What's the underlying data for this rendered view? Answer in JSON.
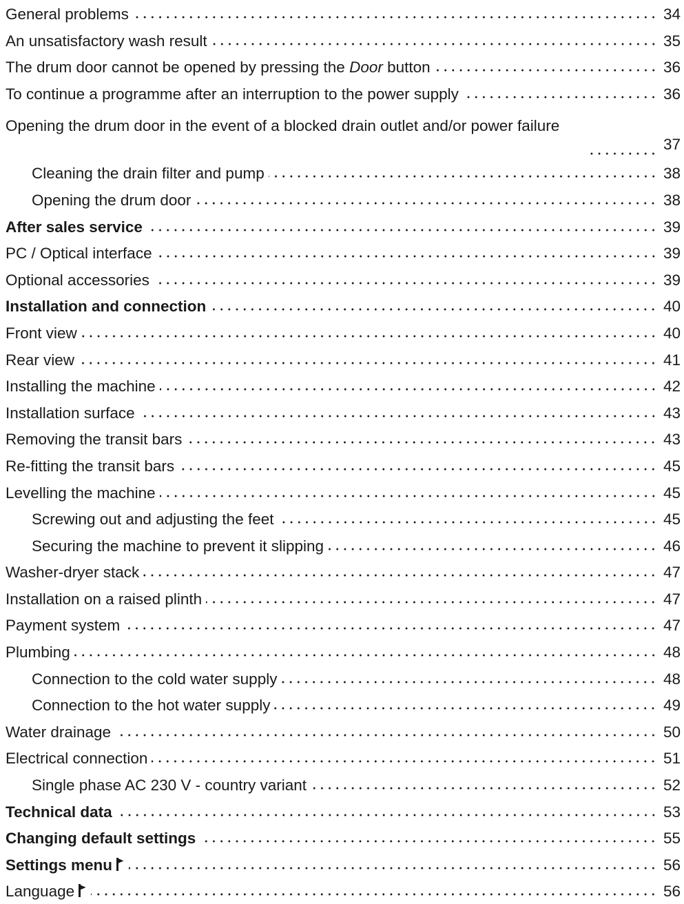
{
  "toc": {
    "entries": [
      {
        "title": "General problems",
        "page": "34",
        "level": 1,
        "bold": false
      },
      {
        "title": "An unsatisfactory wash result",
        "page": "35",
        "level": 1,
        "bold": false
      },
      {
        "title_pre": "The drum door cannot be opened by pressing the ",
        "title_em": "Door",
        "title_post": " button",
        "page": "36",
        "level": 1,
        "bold": false
      },
      {
        "title": "To continue a programme after an interruption to the power supply",
        "page": "36",
        "level": 1,
        "bold": false
      },
      {
        "title": "Opening the drum door in the event of a blocked drain outlet and/or power failure",
        "page": "37",
        "level": 1,
        "bold": false
      },
      {
        "title": "Cleaning the drain filter and pump",
        "page": "38",
        "level": 2,
        "bold": false
      },
      {
        "title": "Opening the drum door",
        "page": "38",
        "level": 2,
        "bold": false
      },
      {
        "title": "After sales service",
        "page": "39",
        "level": 1,
        "bold": true
      },
      {
        "title": "PC / Optical interface",
        "page": "39",
        "level": 1,
        "bold": false
      },
      {
        "title": "Optional accessories",
        "page": "39",
        "level": 1,
        "bold": false
      },
      {
        "title": "Installation and connection",
        "page": "40",
        "level": 1,
        "bold": true
      },
      {
        "title": "Front view",
        "page": "40",
        "level": 1,
        "bold": false
      },
      {
        "title": "Rear view",
        "page": "41",
        "level": 1,
        "bold": false
      },
      {
        "title": "Installing the machine",
        "page": "42",
        "level": 1,
        "bold": false
      },
      {
        "title": "Installation surface",
        "page": "43",
        "level": 1,
        "bold": false
      },
      {
        "title": "Removing the transit bars",
        "page": "43",
        "level": 1,
        "bold": false
      },
      {
        "title": "Re-fitting the transit bars",
        "page": "45",
        "level": 1,
        "bold": false
      },
      {
        "title": "Levelling the machine",
        "page": "45",
        "level": 1,
        "bold": false
      },
      {
        "title": "Screwing out and adjusting the feet",
        "page": "45",
        "level": 2,
        "bold": false
      },
      {
        "title": "Securing the machine to prevent it slipping",
        "page": "46",
        "level": 2,
        "bold": false
      },
      {
        "title": "Washer-dryer stack",
        "page": "47",
        "level": 1,
        "bold": false
      },
      {
        "title": "Installation on a raised plinth",
        "page": "47",
        "level": 1,
        "bold": false
      },
      {
        "title": "Payment system",
        "page": "47",
        "level": 1,
        "bold": false
      },
      {
        "title": "Plumbing",
        "page": "48",
        "level": 1,
        "bold": false
      },
      {
        "title": "Connection to the cold water supply",
        "page": "48",
        "level": 2,
        "bold": false
      },
      {
        "title": "Connection to the hot water supply",
        "page": "49",
        "level": 2,
        "bold": false
      },
      {
        "title": "Water drainage",
        "page": "50",
        "level": 1,
        "bold": false
      },
      {
        "title": "Electrical connection",
        "page": "51",
        "level": 1,
        "bold": false
      },
      {
        "title": "Single phase AC 230 V - country variant",
        "page": "52",
        "level": 2,
        "bold": false
      },
      {
        "title": "Technical data",
        "page": "53",
        "level": 1,
        "bold": true
      },
      {
        "title": "Changing default settings",
        "page": "55",
        "level": 1,
        "bold": true
      },
      {
        "title": "Settings menu",
        "page": "56",
        "level": 1,
        "bold": true,
        "icon": "flag-icon"
      },
      {
        "title": "Language",
        "page": "56",
        "level": 1,
        "bold": false,
        "icon": "flag-icon"
      }
    ]
  }
}
